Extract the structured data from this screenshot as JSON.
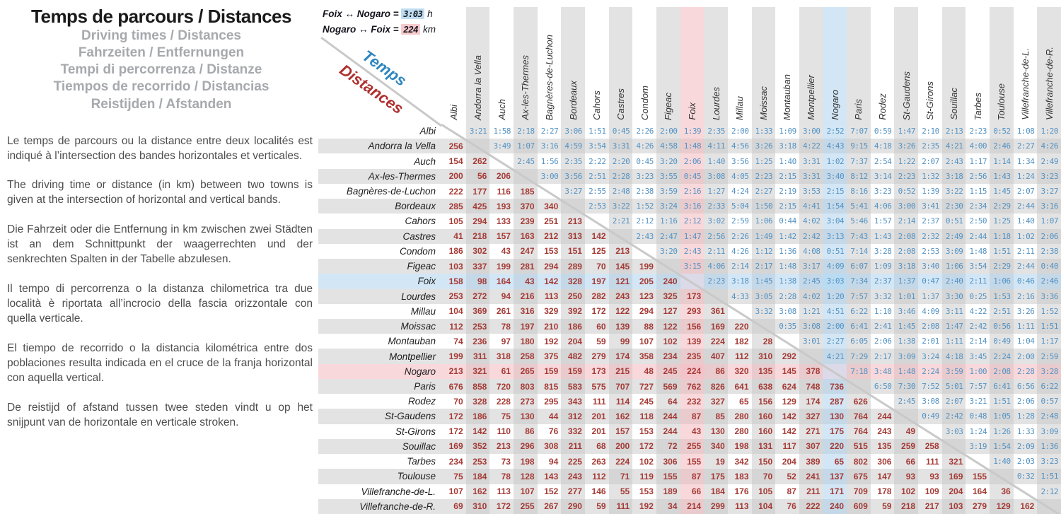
{
  "header": {
    "title": "Temps de parcours / Distances",
    "subtitles": [
      "Driving times / Distances",
      "Fahrzeiten / Entfernungen",
      "Tempi di percorrenza / Distanze",
      "Tiempos de recorrido / Distancias",
      "Reistijden / Afstanden"
    ]
  },
  "paragraphs": [
    "Le temps de parcours ou la distance entre deux localités est indiqué à l’intersection des bandes horizontales et verticales.",
    "The driving time or distance (in km) between two towns is given at the intersection of horizontal and vertical bands.",
    "Die Fahrzeit oder die Entfernung in km zwischen zwei Städten ist an dem Schnittpunkt der waagerrechten und der senkrechten Spalten in der Tabelle abzulesen.",
    "Il tempo di percorrenza o la distanza chilometrica tra due località è riportata all’incrocio della fascia orizzontale con quella verticale.",
    "El tiempo de recorrido o la distancia kilométrica entre dos poblaciones resulta indicada en el cruce de la franja horizontal con aquella vertical.",
    "De reistijd of afstand tussen twee steden vindt u op het snijpunt van de horizontale en verticale stroken."
  ],
  "legend": {
    "time_pair": "Foix ↔ Nogaro =",
    "time_value": "3:03",
    "time_unit": "h",
    "dist_pair": "Nogaro ↔ Foix =",
    "dist_value": "224",
    "dist_unit": "km"
  },
  "diagonal": {
    "temps": "Temps",
    "distances": "Distances"
  },
  "colors": {
    "time_text": "#5493c4",
    "distance_text": "#a53a35",
    "temps_label": "#2f86bf",
    "distances_label": "#ae2f2e",
    "band_gray": "#e3e3e3",
    "band_gray_overlap": "#d5d5d5",
    "foix_blue": "#d2e6f5",
    "blue_on_gray": "#c4d8e8",
    "nogaro_pink": "#f8d8db",
    "pink_on_gray": "#e9cacd",
    "blue_blue": "#badcf2",
    "pink_pink": "#f4c3c9",
    "blue_pink": "#dcd9e8",
    "white": "#ffffff"
  },
  "table": {
    "cities": [
      "Albi",
      "Andorra la Vella",
      "Auch",
      "Ax-les-Thermes",
      "Bagnères-de-Luchon",
      "Bordeaux",
      "Cahors",
      "Castres",
      "Condom",
      "Figeac",
      "Foix",
      "Lourdes",
      "Millau",
      "Moissac",
      "Montauban",
      "Montpellier",
      "Nogaro",
      "Paris",
      "Rodez",
      "St-Gaudens",
      "St-Girons",
      "Souillac",
      "Tarbes",
      "Toulouse",
      "Villefranche-de-L.",
      "Villefranche-de-R."
    ],
    "highlight": {
      "blue_row": 10,
      "pink_row": 16,
      "pink_col": 10,
      "blue_col": 16
    },
    "times": [
      [
        "3:21",
        "1:58",
        "2:18",
        "2:27",
        "3:06",
        "1:51",
        "0:45",
        "2:26",
        "2:00",
        "1:39",
        "2:35",
        "2:00",
        "1:33",
        "1:09",
        "3:00",
        "2:52",
        "7:07",
        "0:59",
        "1:47",
        "2:10",
        "2:13",
        "2:23",
        "0:52",
        "1:08",
        "1:20"
      ],
      [
        "3:49",
        "1:07",
        "3:16",
        "4:59",
        "3:54",
        "3:31",
        "4:26",
        "4:58",
        "1:48",
        "4:11",
        "4:56",
        "3:26",
        "3:18",
        "4:22",
        "4:43",
        "9:15",
        "4:18",
        "3:26",
        "2:35",
        "4:21",
        "4:00",
        "2:46",
        "2:27",
        "4:26"
      ],
      [
        "2:45",
        "1:56",
        "2:35",
        "2:22",
        "2:20",
        "0:45",
        "3:20",
        "2:06",
        "1:40",
        "3:56",
        "1:25",
        "1:40",
        "3:31",
        "1:02",
        "7:37",
        "2:54",
        "1:22",
        "2:07",
        "2:43",
        "1:17",
        "1:14",
        "1:34",
        "2:49"
      ],
      [
        "3:00",
        "3:56",
        "2:51",
        "2:28",
        "3:23",
        "3:55",
        "0:45",
        "3:08",
        "4:05",
        "2:23",
        "2:15",
        "3:31",
        "3:40",
        "8:12",
        "3:14",
        "2:23",
        "1:32",
        "3:18",
        "2:56",
        "1:43",
        "1:24",
        "3:23"
      ],
      [
        "3:27",
        "2:55",
        "2:48",
        "2:38",
        "3:59",
        "2:16",
        "1:27",
        "4:24",
        "2:27",
        "2:19",
        "3:53",
        "2:15",
        "8:16",
        "3:23",
        "0:52",
        "1:39",
        "3:22",
        "1:15",
        "1:45",
        "2:07",
        "3:27"
      ],
      [
        "2:53",
        "3:22",
        "1:52",
        "3:24",
        "3:16",
        "2:33",
        "5:04",
        "1:50",
        "2:15",
        "4:41",
        "1:54",
        "5:41",
        "4:06",
        "3:00",
        "3:41",
        "2:30",
        "2:34",
        "2:29",
        "2:44",
        "3:16"
      ],
      [
        "2:21",
        "2:12",
        "1:16",
        "2:12",
        "3:02",
        "2:59",
        "1:06",
        "0:44",
        "4:02",
        "3:04",
        "5:46",
        "1:57",
        "2:14",
        "2:37",
        "0:51",
        "2:50",
        "1:25",
        "1:40",
        "1:07"
      ],
      [
        "2:43",
        "2:47",
        "1:47",
        "2:56",
        "2:26",
        "1:49",
        "1:42",
        "2:42",
        "3:13",
        "7:43",
        "1:43",
        "2:08",
        "2:32",
        "2:49",
        "2:44",
        "1:18",
        "1:02",
        "2:06"
      ],
      [
        "3:20",
        "2:43",
        "2:11",
        "4:26",
        "1:12",
        "1:36",
        "4:08",
        "0:51",
        "7:14",
        "3:28",
        "2:08",
        "2:53",
        "3:09",
        "1:48",
        "1:51",
        "2:11",
        "2:38"
      ],
      [
        "3:15",
        "4:06",
        "2:14",
        "2:17",
        "1:48",
        "3:17",
        "4:09",
        "6:07",
        "1:09",
        "3:18",
        "3:40",
        "1:06",
        "3:54",
        "2:29",
        "2:44",
        "0:40"
      ],
      [
        "2:23",
        "3:18",
        "1:45",
        "1:38",
        "2:45",
        "3:03",
        "7:34",
        "2:37",
        "1:37",
        "0:47",
        "2:40",
        "2:11",
        "1:06",
        "0:46",
        "2:46"
      ],
      [
        "4:33",
        "3:05",
        "2:28",
        "4:02",
        "1:20",
        "7:57",
        "3:32",
        "1:01",
        "1:37",
        "3:30",
        "0:25",
        "1:53",
        "2:16",
        "3:36"
      ],
      [
        "3:32",
        "3:08",
        "1:21",
        "4:51",
        "6:22",
        "1:10",
        "3:46",
        "4:09",
        "3:11",
        "4:22",
        "2:51",
        "3:26",
        "1:52"
      ],
      [
        "0:35",
        "3:08",
        "2:00",
        "6:41",
        "2:41",
        "1:45",
        "2:08",
        "1:47",
        "2:42",
        "0:56",
        "1:11",
        "1:51"
      ],
      [
        "3:01",
        "2:27",
        "6:05",
        "2:06",
        "1:38",
        "2:01",
        "1:11",
        "2:14",
        "0:49",
        "1:04",
        "1:17"
      ],
      [
        "4:21",
        "7:29",
        "2:17",
        "3:09",
        "3:24",
        "4:18",
        "3:45",
        "2:24",
        "2:00",
        "2:59"
      ],
      [
        "7:18",
        "3:48",
        "1:48",
        "2:24",
        "3:59",
        "1:00",
        "2:08",
        "2:28",
        "3:28"
      ],
      [
        "6:50",
        "7:30",
        "7:52",
        "5:01",
        "7:57",
        "6:41",
        "6:56",
        "6:22"
      ],
      [
        "2:45",
        "3:08",
        "2:07",
        "3:21",
        "1:51",
        "2:06",
        "0:57"
      ],
      [
        "0:49",
        "2:42",
        "0:48",
        "1:05",
        "1:28",
        "2:48"
      ],
      [
        "3:03",
        "1:24",
        "1:26",
        "1:33",
        "3:09"
      ],
      [
        "3:19",
        "1:54",
        "2:09",
        "1:36"
      ],
      [
        "1:40",
        "2:03",
        "3:23"
      ],
      [
        "0:32",
        "1:51"
      ],
      [
        "2:12"
      ],
      []
    ],
    "distances": [
      [],
      [
        256
      ],
      [
        154,
        262
      ],
      [
        200,
        56,
        206
      ],
      [
        222,
        177,
        116,
        185
      ],
      [
        285,
        425,
        193,
        370,
        340
      ],
      [
        105,
        294,
        133,
        239,
        251,
        213
      ],
      [
        41,
        218,
        157,
        163,
        212,
        313,
        142
      ],
      [
        186,
        302,
        43,
        247,
        153,
        151,
        125,
        213
      ],
      [
        103,
        337,
        199,
        281,
        294,
        289,
        70,
        145,
        199
      ],
      [
        158,
        98,
        164,
        43,
        142,
        328,
        197,
        121,
        205,
        240
      ],
      [
        253,
        272,
        94,
        216,
        113,
        250,
        282,
        243,
        123,
        325,
        173
      ],
      [
        104,
        369,
        261,
        316,
        329,
        392,
        172,
        122,
        294,
        127,
        293,
        361
      ],
      [
        112,
        253,
        78,
        197,
        210,
        186,
        60,
        139,
        88,
        122,
        156,
        169,
        220
      ],
      [
        74,
        236,
        97,
        180,
        192,
        204,
        59,
        99,
        107,
        102,
        139,
        224,
        182,
        28
      ],
      [
        199,
        311,
        318,
        258,
        375,
        482,
        279,
        174,
        358,
        234,
        235,
        407,
        112,
        310,
        292
      ],
      [
        213,
        321,
        61,
        265,
        159,
        159,
        173,
        215,
        48,
        245,
        224,
        86,
        320,
        135,
        145,
        378
      ],
      [
        676,
        858,
        720,
        803,
        815,
        583,
        575,
        707,
        727,
        569,
        762,
        826,
        641,
        638,
        624,
        748,
        736
      ],
      [
        70,
        328,
        228,
        273,
        295,
        343,
        111,
        114,
        245,
        64,
        232,
        327,
        65,
        156,
        129,
        174,
        287,
        626
      ],
      [
        172,
        186,
        75,
        130,
        44,
        312,
        201,
        162,
        118,
        244,
        87,
        85,
        280,
        160,
        142,
        327,
        130,
        764,
        244
      ],
      [
        172,
        142,
        110,
        86,
        76,
        332,
        201,
        157,
        153,
        244,
        43,
        130,
        280,
        160,
        142,
        271,
        175,
        764,
        243,
        49
      ],
      [
        169,
        352,
        213,
        296,
        308,
        211,
        68,
        200,
        172,
        72,
        255,
        340,
        198,
        131,
        117,
        307,
        220,
        515,
        135,
        259,
        258
      ],
      [
        234,
        253,
        73,
        198,
        94,
        225,
        263,
        224,
        102,
        306,
        155,
        19,
        342,
        150,
        204,
        389,
        65,
        802,
        306,
        66,
        111,
        321
      ],
      [
        75,
        184,
        78,
        128,
        143,
        243,
        112,
        71,
        119,
        155,
        87,
        175,
        183,
        70,
        52,
        241,
        137,
        675,
        147,
        93,
        93,
        169,
        155
      ],
      [
        107,
        162,
        113,
        107,
        152,
        277,
        146,
        55,
        153,
        189,
        66,
        184,
        176,
        105,
        87,
        211,
        171,
        709,
        178,
        102,
        109,
        204,
        164,
        36
      ],
      [
        69,
        310,
        172,
        255,
        267,
        290,
        59,
        111,
        192,
        34,
        214,
        299,
        113,
        104,
        76,
        222,
        240,
        609,
        59,
        218,
        217,
        103,
        279,
        129,
        162
      ]
    ]
  }
}
